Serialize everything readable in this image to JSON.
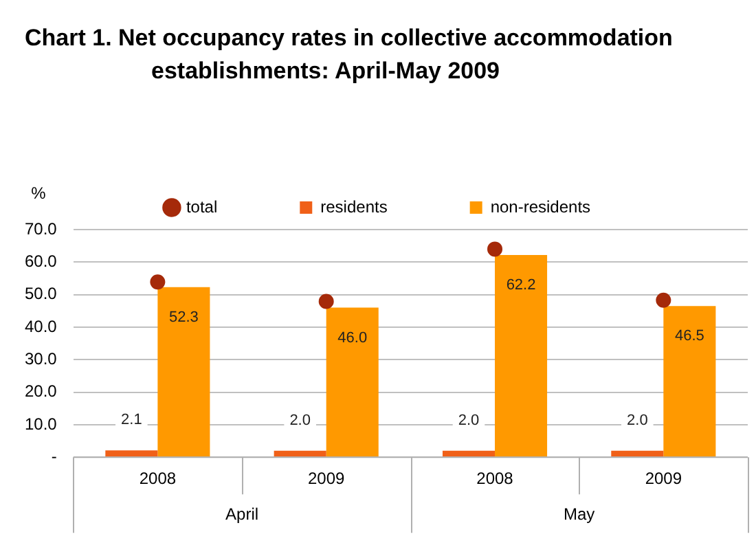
{
  "chart_data": {
    "type": "bar",
    "title": "Chart 1.  Net occupancy rates in collective accommodation establishments: April-May 2009",
    "ylabel": "%",
    "categories": [
      "2008",
      "2009",
      "2008",
      "2009"
    ],
    "annotations": [
      "April",
      "May"
    ],
    "series": [
      {
        "name": "residents",
        "color": "#f06018",
        "values": [
          2.1,
          2.0,
          2.0,
          2.0
        ],
        "value_labels": [
          "2.1",
          "2.0",
          "2.0",
          "2.0"
        ]
      },
      {
        "name": "non-residents",
        "color": "#ff9900",
        "values": [
          52.3,
          46.0,
          62.2,
          46.5
        ],
        "value_labels": [
          "52.3",
          "46.0",
          "62.2",
          "46.5"
        ]
      },
      {
        "name": "total",
        "type": "scatter",
        "color": "#a52a0a",
        "values": [
          53.9,
          47.9,
          64.0,
          48.3
        ]
      }
    ],
    "ylim": [
      0,
      70
    ],
    "yticks": [
      {
        "value": 0,
        "label": "-"
      },
      {
        "value": 10,
        "label": "10.0"
      },
      {
        "value": 20,
        "label": "20.0"
      },
      {
        "value": 30,
        "label": "30.0"
      },
      {
        "value": 40,
        "label": "40.0"
      },
      {
        "value": 50,
        "label": "50.0"
      },
      {
        "value": 60,
        "label": "60.0"
      },
      {
        "value": 70,
        "label": "70.0"
      }
    ],
    "grid": "y",
    "legend": "top",
    "marker": "circle"
  }
}
